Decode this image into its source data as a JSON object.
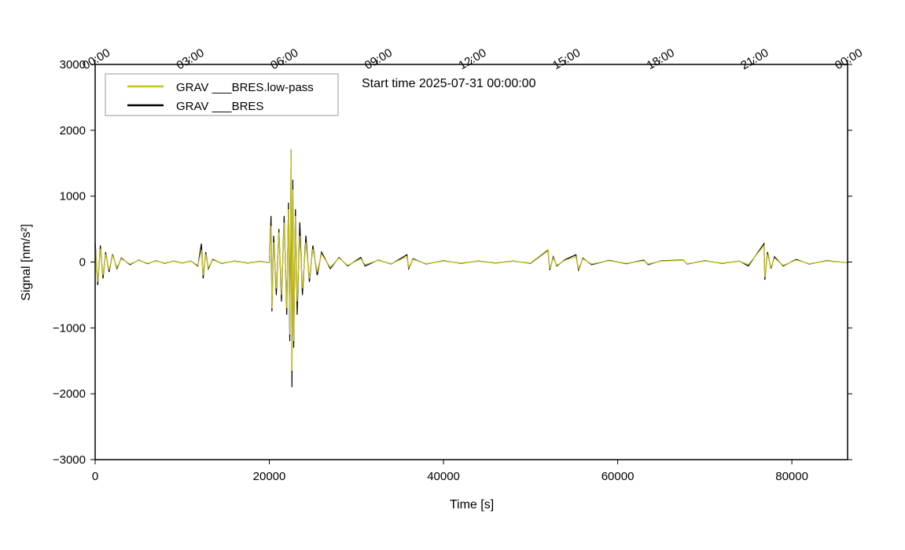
{
  "chart_data": {
    "type": "line",
    "annotation": "Start time 2025-07-31 00:00:00",
    "xlabel": "Time [s]",
    "ylabel": "Signal [nm/s²]",
    "xlim": [
      0,
      86400
    ],
    "ylim": [
      -3000,
      3000
    ],
    "xticks": [
      0,
      20000,
      40000,
      60000,
      80000
    ],
    "yticks": [
      {
        "value": -3000,
        "label": "−3000"
      },
      {
        "value": -2000,
        "label": "−2000"
      },
      {
        "value": -1000,
        "label": "−1000"
      },
      0,
      1000,
      2000,
      3000
    ],
    "x2ticks": [
      {
        "value": 0,
        "label": "00:00"
      },
      {
        "value": 10800,
        "label": "03:00"
      },
      {
        "value": 21600,
        "label": "06:00"
      },
      {
        "value": 32400,
        "label": "09:00"
      },
      {
        "value": 43200,
        "label": "12:00"
      },
      {
        "value": 54000,
        "label": "15:00"
      },
      {
        "value": 64800,
        "label": "18:00"
      },
      {
        "value": 75600,
        "label": "21:00"
      },
      {
        "value": 86400,
        "label": "00:00"
      }
    ],
    "legend": "upper left",
    "x": [
      0,
      300,
      600,
      900,
      1200,
      1600,
      2000,
      2500,
      3000,
      4000,
      5000,
      6000,
      7000,
      8000,
      9000,
      10000,
      11000,
      11800,
      12200,
      12400,
      12700,
      13000,
      13500,
      14500,
      16000,
      17500,
      19000,
      20000,
      20200,
      20300,
      20500,
      20800,
      21100,
      21400,
      21700,
      22000,
      22200,
      22350,
      22500,
      22600,
      22700,
      22800,
      23000,
      23200,
      23500,
      23800,
      24200,
      24600,
      25000,
      25500,
      26000,
      27000,
      28000,
      29000,
      30500,
      31000,
      32500,
      34000,
      35800,
      36000,
      36500,
      38000,
      40000,
      42000,
      44000,
      46000,
      48000,
      50000,
      52000,
      52200,
      52600,
      53000,
      54000,
      55200,
      55500,
      56000,
      57000,
      59000,
      61000,
      63000,
      63500,
      65000,
      67500,
      68000,
      70000,
      72000,
      74000,
      75000,
      76800,
      76900,
      77200,
      77600,
      78000,
      79000,
      80500,
      82000,
      84000,
      86400
    ],
    "series": [
      {
        "name": "GRAV ___BRES.low-pass",
        "color": "#c8c41a",
        "values": [
          250,
          -300,
          200,
          -200,
          120,
          -120,
          100,
          -80,
          50,
          -30,
          25,
          -20,
          15,
          -15,
          12,
          -12,
          12,
          -50,
          180,
          -200,
          120,
          -80,
          30,
          -15,
          12,
          -12,
          8,
          -8,
          550,
          -700,
          300,
          -400,
          450,
          -500,
          600,
          -700,
          800,
          -1100,
          1720,
          -1650,
          1100,
          -1200,
          700,
          -600,
          400,
          -400,
          300,
          -250,
          200,
          -150,
          120,
          -80,
          60,
          -50,
          50,
          -40,
          25,
          -25,
          80,
          -80,
          40,
          -25,
          15,
          -15,
          12,
          -12,
          12,
          -15,
          190,
          -100,
          60,
          -50,
          30,
          80,
          -100,
          50,
          -30,
          20,
          -20,
          20,
          -30,
          15,
          25,
          -25,
          15,
          -15,
          12,
          -40,
          250,
          -230,
          120,
          -80,
          60,
          -50,
          30,
          -25,
          15,
          -8
        ]
      },
      {
        "name": "GRAV ___BRES",
        "color": "#000000",
        "values": [
          300,
          -350,
          250,
          -250,
          150,
          -150,
          120,
          -100,
          60,
          -40,
          30,
          -25,
          20,
          -20,
          15,
          -15,
          15,
          -60,
          280,
          -250,
          150,
          -100,
          40,
          -20,
          15,
          -15,
          10,
          -10,
          700,
          -750,
          400,
          -500,
          500,
          -600,
          700,
          -800,
          900,
          -1200,
          1700,
          -1900,
          1250,
          -1300,
          800,
          -800,
          600,
          -500,
          400,
          -300,
          250,
          -200,
          150,
          -100,
          70,
          -60,
          70,
          -60,
          30,
          -30,
          110,
          -100,
          50,
          -30,
          20,
          -20,
          15,
          -15,
          15,
          -20,
          180,
          -120,
          80,
          -60,
          40,
          110,
          -120,
          60,
          -40,
          25,
          -25,
          30,
          -40,
          20,
          30,
          -30,
          20,
          -20,
          15,
          -60,
          280,
          -270,
          150,
          -100,
          80,
          -60,
          40,
          -30,
          20,
          -10
        ]
      }
    ]
  }
}
